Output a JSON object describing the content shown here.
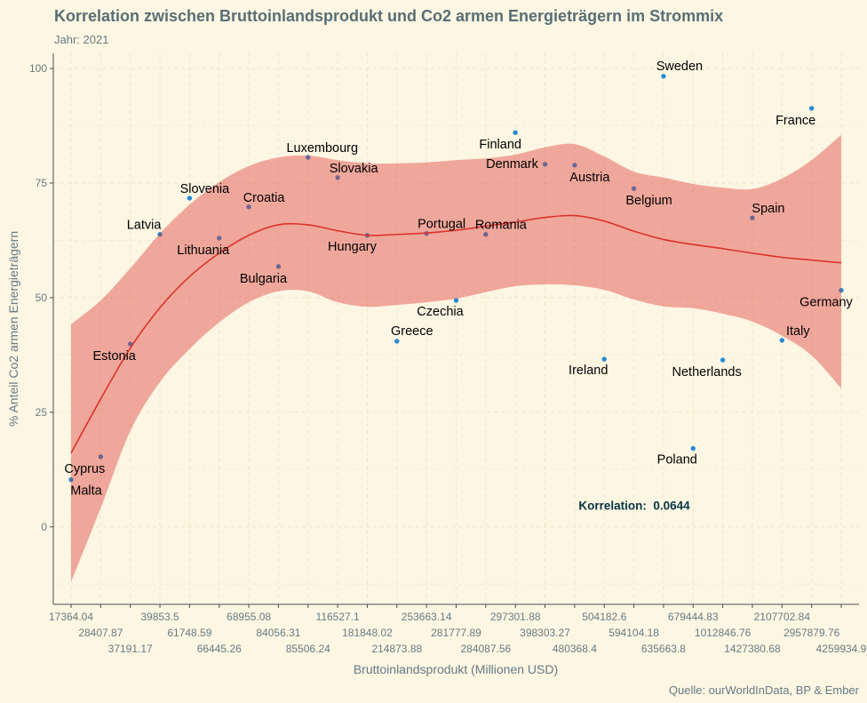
{
  "colors": {
    "background": "#fdf6e3",
    "title": "#586e75",
    "text": "#657b83",
    "point": "#268bd2",
    "smooth": "#dc322f",
    "band": "#dc322f",
    "annotation": "#073642"
  },
  "chart_data": {
    "type": "scatter",
    "title": "Korrelation zwischen Bruttoinlandsprodukt und Co2 armen Energieträgern im Strommix",
    "subtitle": "Jahr: 2021",
    "caption": "Quelle: ourWorldInData, BP & Ember",
    "xlabel": "Bruttoinlandsprodukt (Millionen USD)",
    "ylabel": "% Anteil Co2 armen Energieträgern",
    "annotation": "Korrelation:  0.0644",
    "grid": true,
    "ylim": [
      -16.9,
      103.3
    ],
    "yticks": [
      0,
      25,
      50,
      75,
      100
    ],
    "categories": [
      "17364.04",
      "28407.87",
      "37191.17",
      "39853.5",
      "61748.59",
      "66445.26",
      "68955.08",
      "84056.31",
      "85506.24",
      "116527.1",
      "181848.02",
      "214873.88",
      "253663.14",
      "281777.89",
      "284087.56",
      "297301.88",
      "398303.27",
      "480368.4",
      "504182.6",
      "594104.18",
      "635663.8",
      "679444.83",
      "1012846.76",
      "1427380.68",
      "2107702.84",
      "2957879.76",
      "4259934.9"
    ],
    "points": [
      {
        "country": "Malta",
        "x": 17364.04,
        "y": 10.3
      },
      {
        "country": "Cyprus",
        "x": 28407.87,
        "y": 15.3
      },
      {
        "country": "Estonia",
        "x": 37191.17,
        "y": 39.9
      },
      {
        "country": "Latvia",
        "x": 39853.5,
        "y": 63.8
      },
      {
        "country": "Slovenia",
        "x": 61748.59,
        "y": 71.7
      },
      {
        "country": "Lithuania",
        "x": 66445.26,
        "y": 63.0
      },
      {
        "country": "Croatia",
        "x": 68955.08,
        "y": 69.8
      },
      {
        "country": "Bulgaria",
        "x": 84056.31,
        "y": 56.8
      },
      {
        "country": "Luxembourg",
        "x": 85506.24,
        "y": 80.6
      },
      {
        "country": "Slovakia",
        "x": 116527.1,
        "y": 76.2
      },
      {
        "country": "Hungary",
        "x": 181848.02,
        "y": 63.6
      },
      {
        "country": "Greece",
        "x": 214873.88,
        "y": 40.5
      },
      {
        "country": "Portugal",
        "x": 253663.14,
        "y": 64.0
      },
      {
        "country": "Czechia",
        "x": 281777.89,
        "y": 49.4
      },
      {
        "country": "Romania",
        "x": 284087.56,
        "y": 63.8
      },
      {
        "country": "Finland",
        "x": 297301.88,
        "y": 86.0
      },
      {
        "country": "Denmark",
        "x": 398303.27,
        "y": 79.1
      },
      {
        "country": "Austria",
        "x": 480368.4,
        "y": 78.9
      },
      {
        "country": "Ireland",
        "x": 504182.6,
        "y": 36.6
      },
      {
        "country": "Belgium",
        "x": 594104.18,
        "y": 73.8
      },
      {
        "country": "Sweden",
        "x": 635663.8,
        "y": 98.3
      },
      {
        "country": "Poland",
        "x": 679444.83,
        "y": 17.1
      },
      {
        "country": "Netherlands",
        "x": 1012846.76,
        "y": 36.4
      },
      {
        "country": "Spain",
        "x": 1427380.68,
        "y": 67.4
      },
      {
        "country": "Italy",
        "x": 2107702.84,
        "y": 40.7
      },
      {
        "country": "France",
        "x": 2957879.76,
        "y": 91.3
      },
      {
        "country": "Germany",
        "x": 4259934.9,
        "y": 51.6
      }
    ],
    "smooth": {
      "fit": [
        16.1,
        27.9,
        39.0,
        47.8,
        54.6,
        59.7,
        63.6,
        65.9,
        65.9,
        64.6,
        63.6,
        63.8,
        64.1,
        64.7,
        65.6,
        66.5,
        67.5,
        67.9,
        66.7,
        64.5,
        62.7,
        61.6,
        60.7,
        59.7,
        58.8,
        58.2,
        57.6
      ],
      "upper": [
        44.2,
        49.4,
        56.4,
        64.0,
        70.3,
        75.2,
        78.7,
        80.6,
        81.0,
        80.0,
        79.3,
        79.3,
        79.5,
        80.0,
        80.4,
        81.2,
        82.8,
        83.5,
        80.8,
        77.5,
        76.2,
        74.8,
        74.0,
        73.7,
        76.0,
        80.0,
        85.5
      ],
      "lower": [
        -12.0,
        4.1,
        20.9,
        31.6,
        38.8,
        44.6,
        49.0,
        51.4,
        51.4,
        49.0,
        48.0,
        48.4,
        49.0,
        49.8,
        51.2,
        52.5,
        52.9,
        52.7,
        51.7,
        49.6,
        48.1,
        47.7,
        46.5,
        44.8,
        41.7,
        37.4,
        30.2
      ]
    }
  }
}
